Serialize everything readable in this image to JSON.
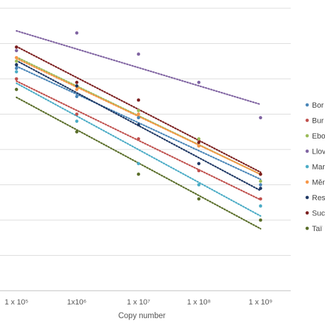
{
  "chart_data": {
    "type": "scatter",
    "xlabel": "Copy number",
    "ylabel": "",
    "x": [
      100000,
      1000000,
      10000000,
      100000000,
      1000000000
    ],
    "x_tick_labels": [
      "1 x 10⁵",
      "1x10⁶",
      "1 x 10⁷",
      "1 x 10⁸",
      "1 x 10⁹"
    ],
    "y_unit_note": "y values in units of horizontal gridlines counted upward from the bottom axis line",
    "ylim": [
      0,
      8
    ],
    "grid": true,
    "trendlines": "linear, dotted",
    "legend_position": "right",
    "series": [
      {
        "name": "Bor",
        "color": "#4a86b8",
        "values": [
          6.3,
          5.5,
          4.9,
          4.1,
          3.0
        ]
      },
      {
        "name": "Bur",
        "color": "#c0504d",
        "values": [
          6.0,
          5.0,
          4.3,
          3.4,
          2.6
        ]
      },
      {
        "name": "Ebo",
        "color": "#9bbb59",
        "values": [
          6.5,
          5.8,
          5.1,
          4.3,
          3.1
        ]
      },
      {
        "name": "Llov",
        "color": "#8064a2",
        "values": [
          6.8,
          7.3,
          6.7,
          5.9,
          4.9
        ]
      },
      {
        "name": "Mar",
        "color": "#4bacc6",
        "values": [
          6.2,
          4.8,
          3.6,
          3.0,
          2.4
        ]
      },
      {
        "name": "Měn",
        "color": "#f79646",
        "values": [
          6.6,
          5.7,
          5.0,
          4.1,
          3.3
        ]
      },
      {
        "name": "Res",
        "color": "#1f3864",
        "values": [
          6.4,
          5.8,
          4.7,
          3.6,
          2.9
        ]
      },
      {
        "name": "Suc",
        "color": "#7b1f1f",
        "values": [
          6.9,
          5.9,
          5.4,
          4.2,
          3.3
        ]
      },
      {
        "name": "Taï",
        "color": "#5a6e2a",
        "values": [
          5.7,
          4.5,
          3.3,
          2.6,
          2.0
        ]
      }
    ]
  }
}
